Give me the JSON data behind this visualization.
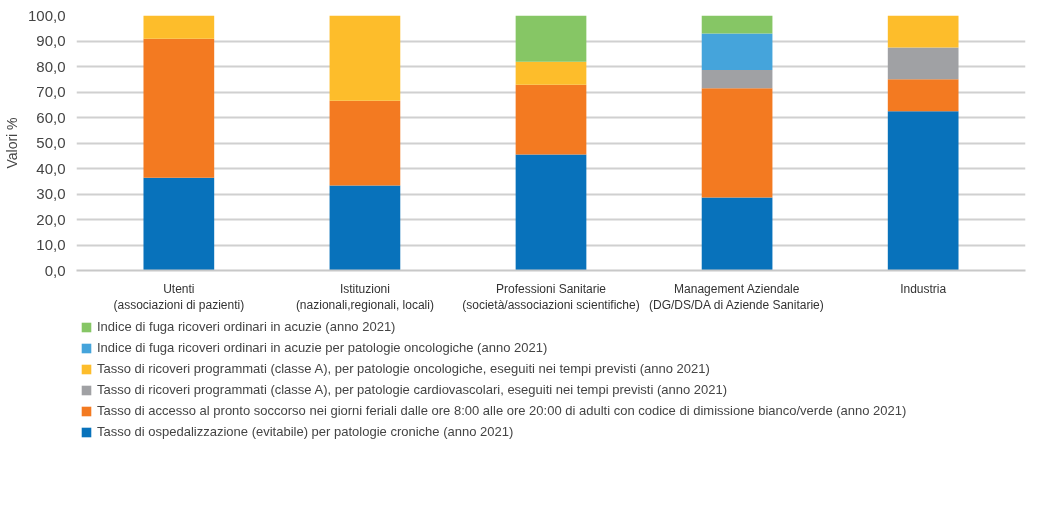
{
  "chart_data": {
    "type": "bar",
    "stacked": true,
    "ylabel": "Valori %",
    "categories": [
      "Utenti\n(associazioni di pazienti)",
      "Istituzioni\n(nazionali,regionali, locali)",
      "Professioni Sanitarie\n(società/associazioni scientifiche)",
      "Management Aziendale\n(DG/DS/DA di Aziende Sanitarie)",
      "Industria\n "
    ],
    "series": [
      {
        "name": "Tasso di ospedalizzazione (evitabile) per patologie croniche (anno 2021)",
        "color": "#0872bb",
        "values": [
          36.4,
          33.3,
          45.5,
          28.6,
          62.5
        ]
      },
      {
        "name": "Tasso di accesso al pronto soccorso nei giorni feriali dalle ore 8:00 alle ore 20:00 di adulti con codice di dimissione bianco/verde (anno 2021)",
        "color": "#f37a21",
        "values": [
          54.5,
          33.3,
          27.3,
          42.9,
          12.5
        ]
      },
      {
        "name": "Tasso di ricoveri programmati (classe A), per patologie cardiovascolari, eseguiti nei tempi previsti (anno 2021)",
        "color": "#a0a1a4",
        "values": [
          0,
          0,
          0,
          7.1,
          12.5
        ]
      },
      {
        "name": "Tasso di ricoveri programmati (classe A), per patologie oncologiche, eseguiti nei tempi previsti (anno 2021)",
        "color": "#fdbd2b",
        "values": [
          9.1,
          33.4,
          9.1,
          0,
          12.5
        ]
      },
      {
        "name": "Indice di fuga ricoveri ordinari in acuzie per patologie oncologiche (anno 2021)",
        "color": "#45a4db",
        "values": [
          0,
          0,
          0,
          14.3,
          0
        ]
      },
      {
        "name": "Indice di fuga ricoveri ordinari in acuzie (anno 2021)",
        "color": "#86c665",
        "values": [
          0,
          0,
          18.2,
          7.1,
          0
        ]
      }
    ],
    "ylim": [
      0,
      100
    ],
    "yticks": [
      {
        "value": 0,
        "label": "0,0"
      },
      {
        "value": 10,
        "label": "10,0"
      },
      {
        "value": 20,
        "label": "20,0"
      },
      {
        "value": 30,
        "label": "30,0"
      },
      {
        "value": 40,
        "label": "40,0"
      },
      {
        "value": 50,
        "label": "50,0"
      },
      {
        "value": 60,
        "label": "60,0"
      },
      {
        "value": 70,
        "label": "70,0"
      },
      {
        "value": 80,
        "label": "80,0"
      },
      {
        "value": 90,
        "label": "90,0"
      },
      {
        "value": 100,
        "label": "100,0"
      }
    ],
    "grid": "y",
    "legend": "bottom"
  }
}
